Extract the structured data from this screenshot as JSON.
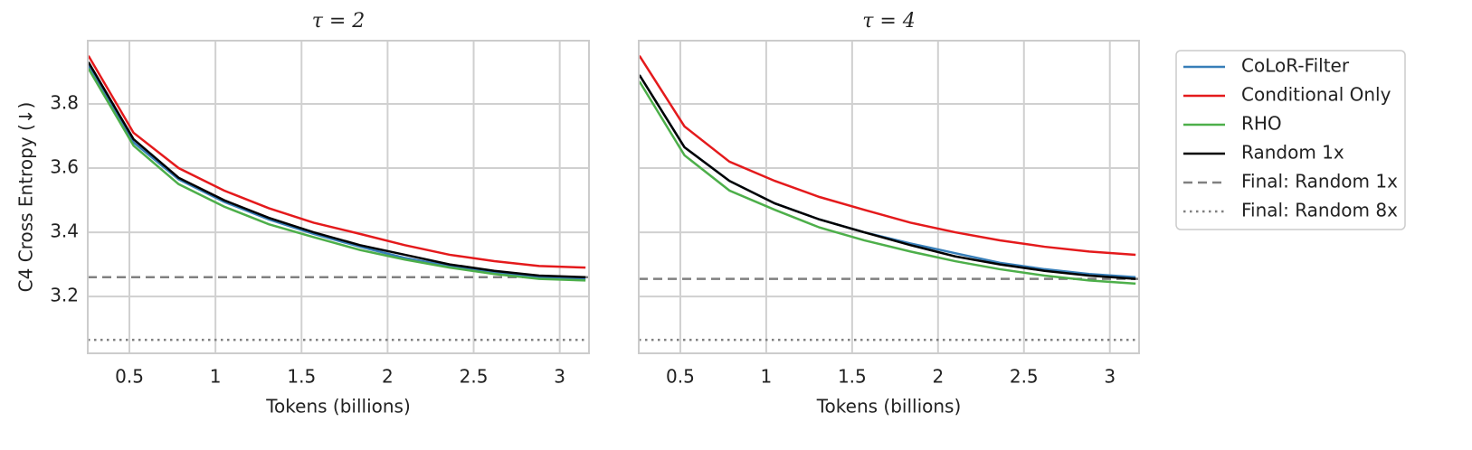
{
  "chart_data": [
    {
      "type": "line",
      "title": "τ = 2",
      "x_label": "Tokens (billions)",
      "y_label": "C4 Cross Entropy (↓)",
      "x": [
        0.262,
        0.524,
        0.786,
        1.05,
        1.31,
        1.57,
        1.84,
        2.1,
        2.36,
        2.62,
        2.88,
        3.15
      ],
      "xlim": [
        0.258,
        3.17
      ],
      "xticks": [
        0.5,
        1.0,
        1.5,
        2.0,
        2.5,
        3.0
      ],
      "ylim": [
        3.023,
        3.997
      ],
      "yticks": [
        3.2,
        3.4,
        3.6,
        3.8
      ],
      "grid": true,
      "series": [
        {
          "name": "CoLoR-Filter",
          "color": "#377eb8",
          "values": [
            3.92,
            3.68,
            3.565,
            3.495,
            3.44,
            3.395,
            3.355,
            3.32,
            3.295,
            3.275,
            3.26,
            3.255
          ]
        },
        {
          "name": "Conditional Only",
          "color": "#e41a1c",
          "values": [
            3.95,
            3.71,
            3.6,
            3.53,
            3.475,
            3.43,
            3.395,
            3.36,
            3.33,
            3.31,
            3.295,
            3.29
          ]
        },
        {
          "name": "RHO",
          "color": "#4daf4a",
          "values": [
            3.91,
            3.67,
            3.55,
            3.48,
            3.425,
            3.385,
            3.345,
            3.315,
            3.29,
            3.27,
            3.255,
            3.25
          ]
        },
        {
          "name": "Random 1x",
          "color": "#000000",
          "values": [
            3.93,
            3.69,
            3.57,
            3.5,
            3.445,
            3.4,
            3.36,
            3.33,
            3.3,
            3.28,
            3.265,
            3.26
          ]
        }
      ],
      "hlines": [
        {
          "name": "Final: Random 1x",
          "color": "#808080",
          "style": "dashed",
          "value": 3.26
        },
        {
          "name": "Final: Random 8x",
          "color": "#808080",
          "style": "dotted",
          "value": 3.065
        }
      ]
    },
    {
      "type": "line",
      "title": "τ = 4",
      "x_label": "Tokens (billions)",
      "x": [
        0.262,
        0.524,
        0.786,
        1.05,
        1.31,
        1.57,
        1.84,
        2.1,
        2.36,
        2.62,
        2.88,
        3.15
      ],
      "xlim": [
        0.258,
        3.17
      ],
      "xticks": [
        0.5,
        1.0,
        1.5,
        2.0,
        2.5,
        3.0
      ],
      "ylim": [
        3.023,
        3.997
      ],
      "yticks": [
        3.2,
        3.4,
        3.6,
        3.8
      ],
      "grid": true,
      "series": [
        {
          "color": "#377eb8",
          "values": [
            3.89,
            3.665,
            3.56,
            3.49,
            3.44,
            3.4,
            3.365,
            3.335,
            3.305,
            3.285,
            3.27,
            3.26
          ]
        },
        {
          "color": "#e41a1c",
          "values": [
            3.95,
            3.73,
            3.62,
            3.56,
            3.51,
            3.47,
            3.43,
            3.4,
            3.375,
            3.355,
            3.34,
            3.33
          ]
        },
        {
          "color": "#4daf4a",
          "values": [
            3.87,
            3.64,
            3.53,
            3.47,
            3.415,
            3.375,
            3.34,
            3.31,
            3.285,
            3.265,
            3.25,
            3.24
          ]
        },
        {
          "color": "#000000",
          "values": [
            3.89,
            3.665,
            3.56,
            3.49,
            3.44,
            3.4,
            3.36,
            3.325,
            3.3,
            3.28,
            3.265,
            3.255
          ]
        }
      ],
      "hlines": [
        {
          "color": "#808080",
          "style": "dashed",
          "value": 3.255
        },
        {
          "color": "#808080",
          "style": "dotted",
          "value": 3.065
        }
      ]
    }
  ]
}
